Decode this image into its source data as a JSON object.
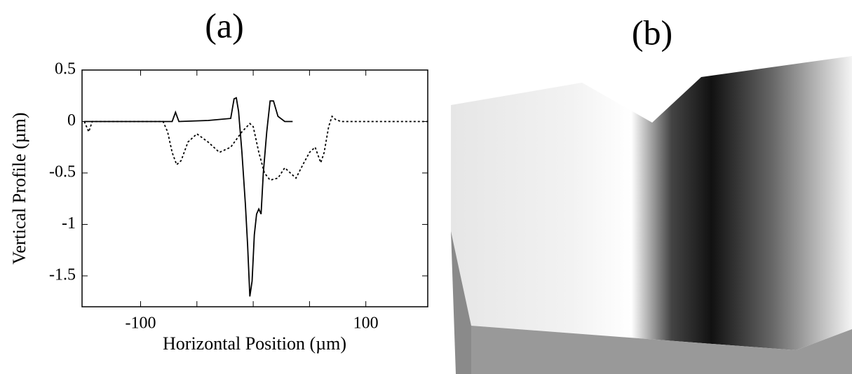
{
  "chart_data": {
    "type": "line",
    "panel_label": "(a)",
    "x_label": "Horizontal Position (µm)",
    "y_label": "Vertical Profile (µm)",
    "xlim": [
      -152,
      155
    ],
    "ylim": [
      -1.8,
      0.5
    ],
    "xticks": [
      -100,
      100
    ],
    "xminor_ticks": [
      -50,
      0,
      50
    ],
    "yticks": [
      0.5,
      0,
      -0.5,
      -1,
      -1.5
    ],
    "series": [
      {
        "color": "#000000",
        "dash": false,
        "x": [
          -150,
          -100,
          -72,
          -69,
          -66,
          -40,
          -20,
          -17,
          -15,
          -13,
          -10,
          -7,
          -5,
          -3,
          -1,
          1,
          3,
          5,
          7,
          9,
          12,
          15,
          18,
          22,
          28,
          35
        ],
        "values": [
          0,
          0,
          0,
          0.09,
          0,
          0.01,
          0.03,
          0.22,
          0.23,
          0.1,
          -0.3,
          -0.8,
          -1.2,
          -1.7,
          -1.55,
          -1.1,
          -0.9,
          -0.85,
          -0.9,
          -0.5,
          -0.1,
          0.2,
          0.2,
          0.05,
          0,
          0
        ]
      },
      {
        "color": "#000000",
        "dash": true,
        "x": [
          -150,
          -146,
          -143,
          -120,
          -80,
          -76,
          -72,
          -68,
          -64,
          -58,
          -50,
          -40,
          -30,
          -20,
          -10,
          -3,
          0,
          5,
          10,
          15,
          22,
          28,
          33,
          38,
          45,
          50,
          55,
          60,
          63,
          67,
          70,
          73,
          78,
          155
        ],
        "values": [
          0,
          -0.1,
          0,
          0,
          0,
          -0.1,
          -0.3,
          -0.42,
          -0.38,
          -0.2,
          -0.12,
          -0.2,
          -0.3,
          -0.25,
          -0.1,
          -0.02,
          -0.05,
          -0.3,
          -0.5,
          -0.57,
          -0.55,
          -0.45,
          -0.5,
          -0.55,
          -0.4,
          -0.3,
          -0.25,
          -0.4,
          -0.3,
          -0.05,
          0.05,
          0.02,
          0,
          0
        ]
      }
    ]
  },
  "image": {
    "panel_label": "(b)"
  }
}
